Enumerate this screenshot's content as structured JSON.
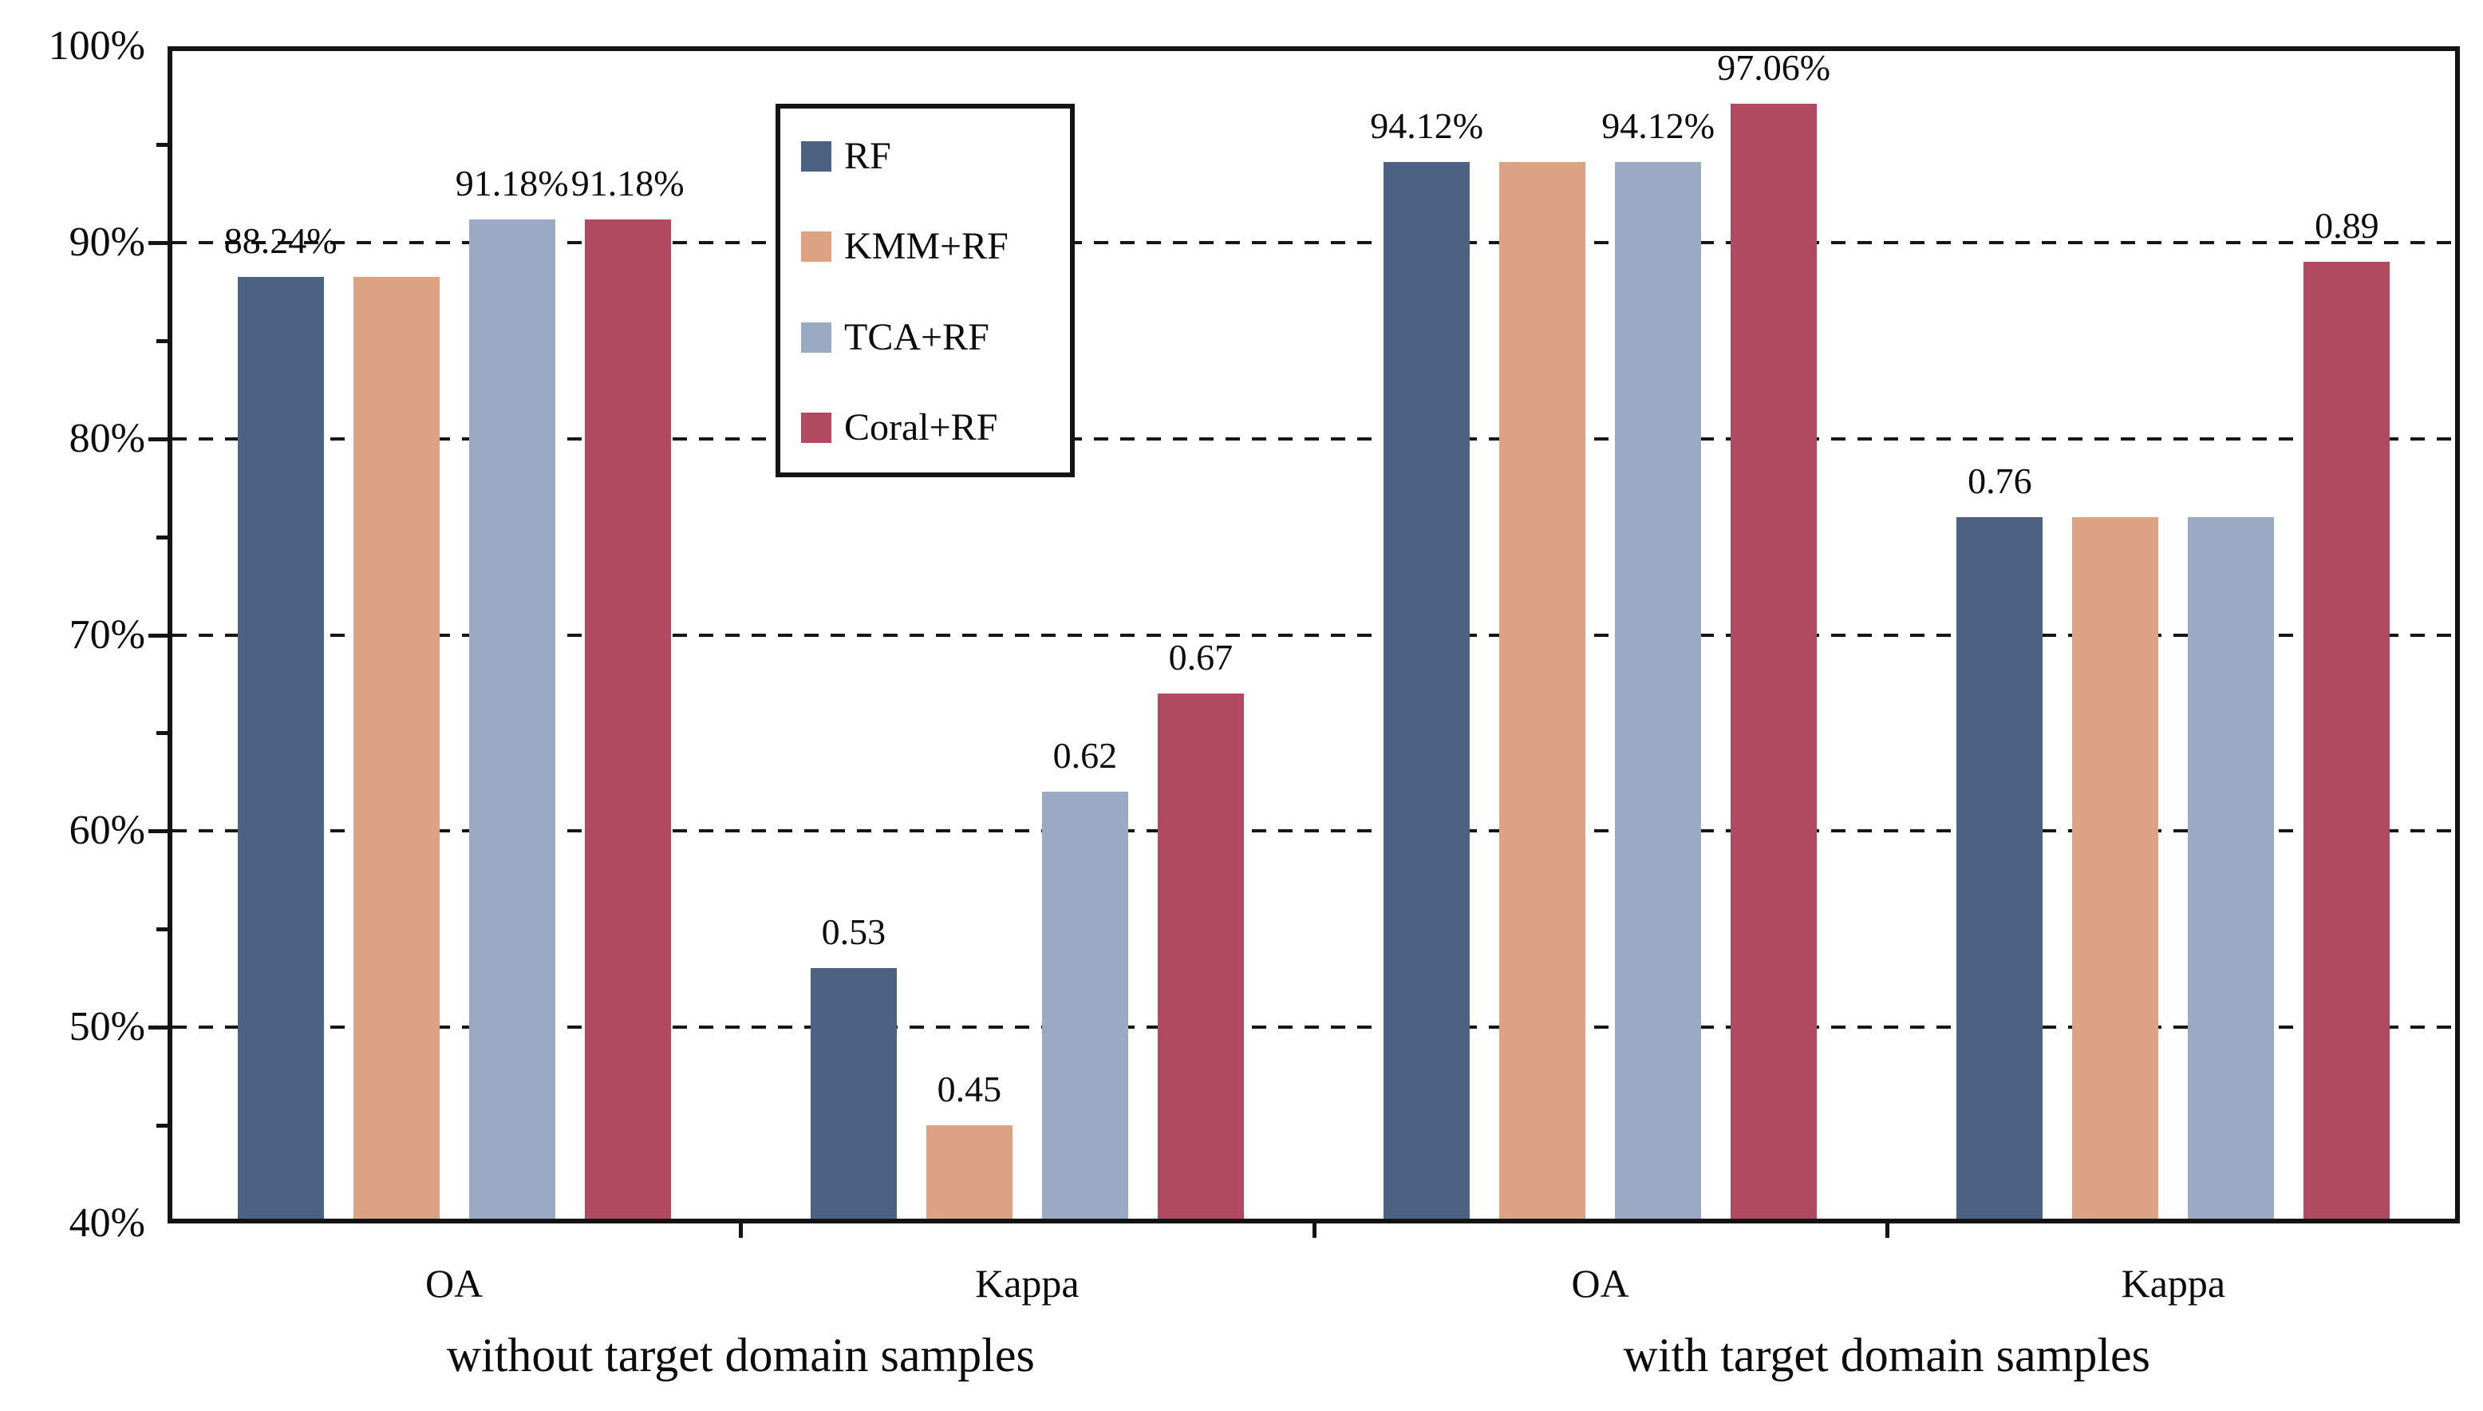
{
  "chart_data": {
    "type": "bar",
    "title": "",
    "categories": [
      "OA",
      "Kappa",
      "OA",
      "Kappa"
    ],
    "group_captions": [
      "without target domain samples",
      "with target domain samples"
    ],
    "series": [
      {
        "name": "RF",
        "color": "#4d6183",
        "values": [
          88.24,
          0.53,
          94.12,
          0.76
        ],
        "labels": [
          "88.24%",
          "0.53",
          "94.12%",
          "0.76"
        ]
      },
      {
        "name": "KMM+RF",
        "color": "#dda184",
        "values": [
          88.24,
          0.45,
          94.12,
          0.76
        ],
        "labels": [
          "",
          "0.45",
          "",
          ""
        ]
      },
      {
        "name": "TCA+RF",
        "color": "#9aa9c4",
        "values": [
          91.18,
          0.62,
          94.12,
          0.76
        ],
        "labels": [
          "91.18%",
          "0.62",
          "94.12%",
          ""
        ]
      },
      {
        "name": "Coral+RF",
        "color": "#b04a60",
        "values": [
          91.18,
          0.67,
          97.06,
          0.89
        ],
        "labels": [
          "91.18%",
          "0.67",
          "97.06%",
          "0.89"
        ]
      }
    ],
    "y_axis": {
      "min": 40,
      "max": 100,
      "major_step": 10,
      "minor_step": 5,
      "tick_labels": [
        "100%",
        "90%",
        "80%",
        "70%",
        "60%",
        "50%",
        "40%"
      ],
      "note": "Kappa values are plotted on the same axis scaled x100"
    },
    "gridlines": [
      90,
      80,
      70,
      60,
      50
    ],
    "grid_style": "dashed",
    "legend": {
      "position": "top-left-inside",
      "entries": [
        "RF",
        "KMM+RF",
        "TCA+RF",
        "Coral+RF"
      ]
    }
  }
}
